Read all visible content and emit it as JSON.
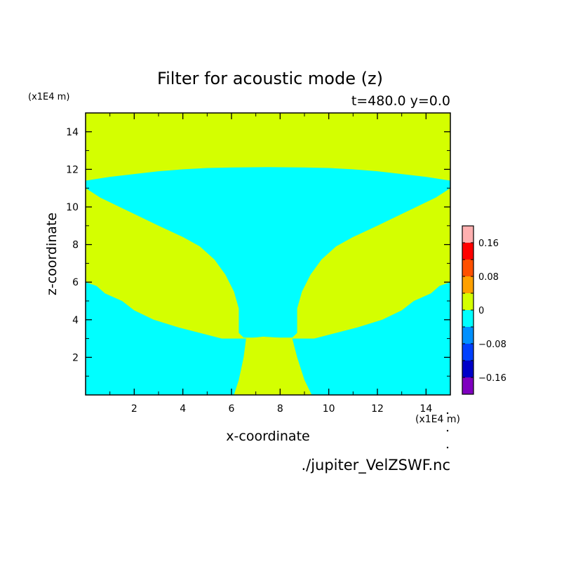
{
  "chart_data": {
    "type": "heatmap",
    "title": "Filter for acoustic mode (z)",
    "subtitle": "t=480.0 y=0.0",
    "xlabel": "x-coordinate",
    "ylabel": "z-coordinate",
    "x_unit": "(x1E4 m)",
    "y_unit": "(x1E4 m)",
    "xlim": [
      0,
      15
    ],
    "ylim": [
      0,
      15
    ],
    "x_ticks": [
      2,
      4,
      6,
      8,
      10,
      12,
      14
    ],
    "y_ticks": [
      2,
      4,
      6,
      8,
      10,
      12,
      14
    ],
    "colorbar": {
      "levels": [
        -0.2,
        -0.16,
        -0.12,
        -0.08,
        -0.04,
        0,
        0.04,
        0.08,
        0.12,
        0.16,
        0.2
      ],
      "colors": [
        "#7f00bf",
        "#0000c8",
        "#0040ff",
        "#0090ff",
        "#00ffff",
        "#d4ff00",
        "#ffa000",
        "#ff5000",
        "#ff0000",
        "#ffb0b0"
      ],
      "tick_labels": [
        {
          "label": "0.16",
          "value": 0.16
        },
        {
          "label": "0.08",
          "value": 0.08
        },
        {
          "label": "0",
          "value": 0
        },
        {
          "label": "−0.08",
          "value": -0.08
        },
        {
          "label": "−0.16",
          "value": -0.16
        }
      ]
    },
    "fields": {
      "negative_color": "#00ffff",
      "positive_color": "#d4ff00",
      "negative_region_boundary": [
        [
          0,
          11.4
        ],
        [
          1,
          11.6
        ],
        [
          2,
          11.75
        ],
        [
          3,
          11.9
        ],
        [
          4,
          12.0
        ],
        [
          5,
          12.07
        ],
        [
          6,
          12.1
        ],
        [
          7.5,
          12.12
        ],
        [
          9,
          12.1
        ],
        [
          10,
          12.07
        ],
        [
          11,
          12.0
        ],
        [
          12,
          11.9
        ],
        [
          13,
          11.75
        ],
        [
          14,
          11.6
        ],
        [
          15,
          11.4
        ],
        [
          15,
          11.0
        ],
        [
          14.4,
          10.5
        ],
        [
          13.6,
          10.0
        ],
        [
          12.8,
          9.5
        ],
        [
          12,
          9.0
        ],
        [
          11,
          8.4
        ],
        [
          10.3,
          7.9
        ],
        [
          9.7,
          7.2
        ],
        [
          9.25,
          6.4
        ],
        [
          8.9,
          5.5
        ],
        [
          8.7,
          4.6
        ],
        [
          8.7,
          3.3
        ],
        [
          8.5,
          3.05
        ],
        [
          7.3,
          3.05
        ],
        [
          6.5,
          3.05
        ],
        [
          6.3,
          3.3
        ],
        [
          6.3,
          4.6
        ],
        [
          6.1,
          5.5
        ],
        [
          5.75,
          6.4
        ],
        [
          5.3,
          7.2
        ],
        [
          4.7,
          7.9
        ],
        [
          4.0,
          8.4
        ],
        [
          3.0,
          9.0
        ],
        [
          2.2,
          9.5
        ],
        [
          1.4,
          10.0
        ],
        [
          0.6,
          10.5
        ],
        [
          0,
          11.0
        ]
      ],
      "inner_positive_boundary": [
        [
          6.1,
          0
        ],
        [
          6.3,
          0.8
        ],
        [
          6.5,
          2.0
        ],
        [
          6.6,
          3.0
        ],
        [
          7.3,
          3.1
        ],
        [
          8.5,
          3.0
        ],
        [
          8.7,
          2.0
        ],
        [
          9.0,
          0.8
        ],
        [
          9.3,
          0
        ]
      ],
      "left_positive_lower_boundary": [
        [
          0,
          6.0
        ],
        [
          0.45,
          5.8
        ],
        [
          0.8,
          5.4
        ],
        [
          1.5,
          5.0
        ],
        [
          2.0,
          4.5
        ],
        [
          2.8,
          4.0
        ],
        [
          3.8,
          3.6
        ],
        [
          5.0,
          3.2
        ],
        [
          5.6,
          3.0
        ],
        [
          6.5,
          3.0
        ]
      ],
      "right_positive_lower_boundary": [
        [
          15,
          6.0
        ],
        [
          14.55,
          5.8
        ],
        [
          14.2,
          5.4
        ],
        [
          13.5,
          5.0
        ],
        [
          13.0,
          4.5
        ],
        [
          12.2,
          4.0
        ],
        [
          11.2,
          3.6
        ],
        [
          10.0,
          3.2
        ],
        [
          9.4,
          3.0
        ],
        [
          8.5,
          3.0
        ]
      ]
    }
  },
  "footer": {
    "source": "./jupiter_VelZSWF.nc"
  }
}
